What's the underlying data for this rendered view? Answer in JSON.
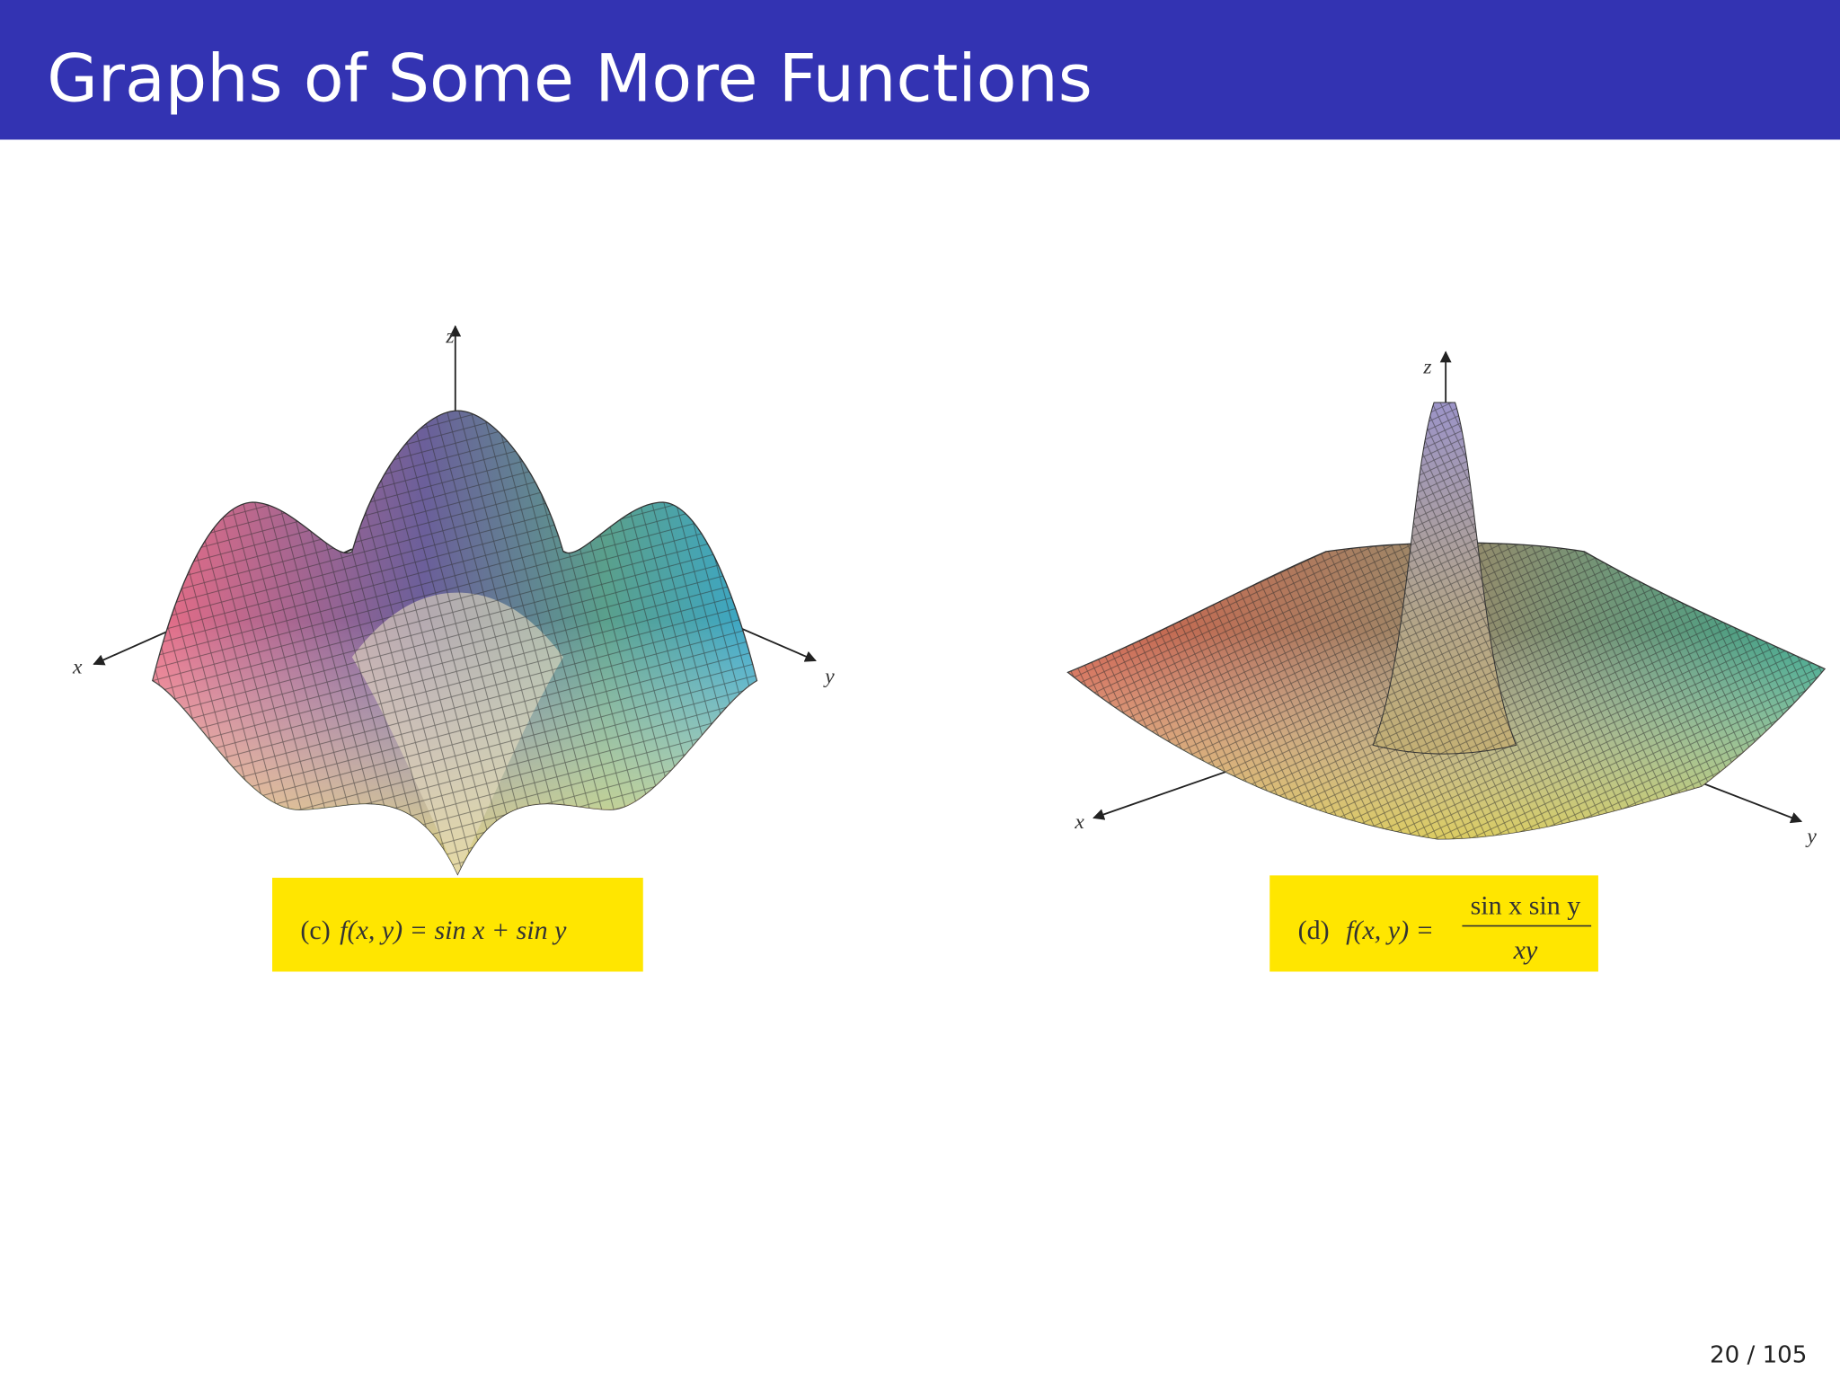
{
  "header": {
    "title": "Graphs of Some More Functions"
  },
  "figures": [
    {
      "axes": {
        "z": "z",
        "x": "x",
        "y": "y"
      },
      "caption": {
        "label": "(c)",
        "formula": "f(x, y) = sin x + sin y"
      }
    },
    {
      "axes": {
        "z": "z",
        "x": "x",
        "y": "y"
      },
      "caption": {
        "label": "(d)",
        "lhs": "f(x, y) =",
        "numerator": "sin x  sin y",
        "denominator": "xy"
      }
    }
  ],
  "footer": {
    "page": "20 / 105"
  }
}
